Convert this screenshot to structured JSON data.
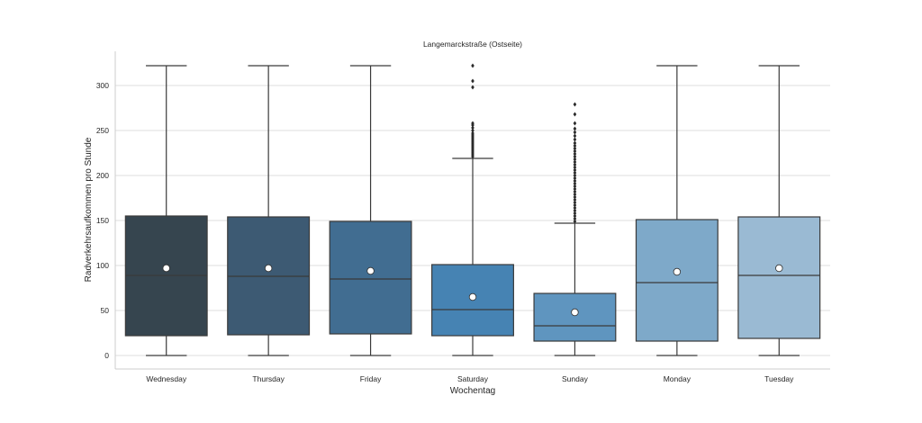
{
  "chart_data": {
    "type": "box",
    "title": "Langemarckstraße (Ostseite)",
    "xlabel": "Wochentag",
    "ylabel": "Radverkehrsaufkommen pro Stunde",
    "ylim": [
      -15,
      340
    ],
    "yticks": [
      0,
      50,
      100,
      150,
      200,
      250,
      300
    ],
    "grid": true,
    "categories": [
      "Wednesday",
      "Thursday",
      "Friday",
      "Saturday",
      "Sunday",
      "Monday",
      "Tuesday"
    ],
    "colors": [
      "#36454f",
      "#3d5a73",
      "#416d91",
      "#4683b3",
      "#5f95bf",
      "#7ea9c9",
      "#9abad3"
    ],
    "boxes": [
      {
        "whisker_low": 0,
        "q1": 22,
        "median": 89,
        "q3": 155,
        "whisker_high": 322,
        "mean": 97,
        "outliers": []
      },
      {
        "whisker_low": 0,
        "q1": 23,
        "median": 88,
        "q3": 154,
        "whisker_high": 322,
        "mean": 97,
        "outliers": []
      },
      {
        "whisker_low": 0,
        "q1": 24,
        "median": 85,
        "q3": 149,
        "whisker_high": 322,
        "mean": 94,
        "outliers": []
      },
      {
        "whisker_low": 0,
        "q1": 22,
        "median": 51,
        "q3": 101,
        "whisker_high": 219,
        "mean": 65,
        "outliers": [
          221,
          223,
          225,
          227,
          229,
          231,
          233,
          235,
          237,
          239,
          241,
          243,
          245,
          247,
          250,
          253,
          256,
          258,
          298,
          305,
          322
        ]
      },
      {
        "whisker_low": 0,
        "q1": 16,
        "median": 33,
        "q3": 69,
        "whisker_high": 147,
        "mean": 48,
        "outliers": [
          149,
          152,
          155,
          158,
          161,
          164,
          167,
          170,
          173,
          176,
          179,
          182,
          185,
          188,
          191,
          194,
          197,
          200,
          203,
          206,
          209,
          212,
          215,
          218,
          221,
          224,
          227,
          230,
          233,
          236,
          240,
          244,
          248,
          252,
          258,
          268,
          279
        ]
      },
      {
        "whisker_low": 0,
        "q1": 16,
        "median": 81,
        "q3": 151,
        "whisker_high": 322,
        "mean": 93,
        "outliers": []
      },
      {
        "whisker_low": 0,
        "q1": 19,
        "median": 89,
        "q3": 154,
        "whisker_high": 322,
        "mean": 97,
        "outliers": []
      }
    ]
  }
}
